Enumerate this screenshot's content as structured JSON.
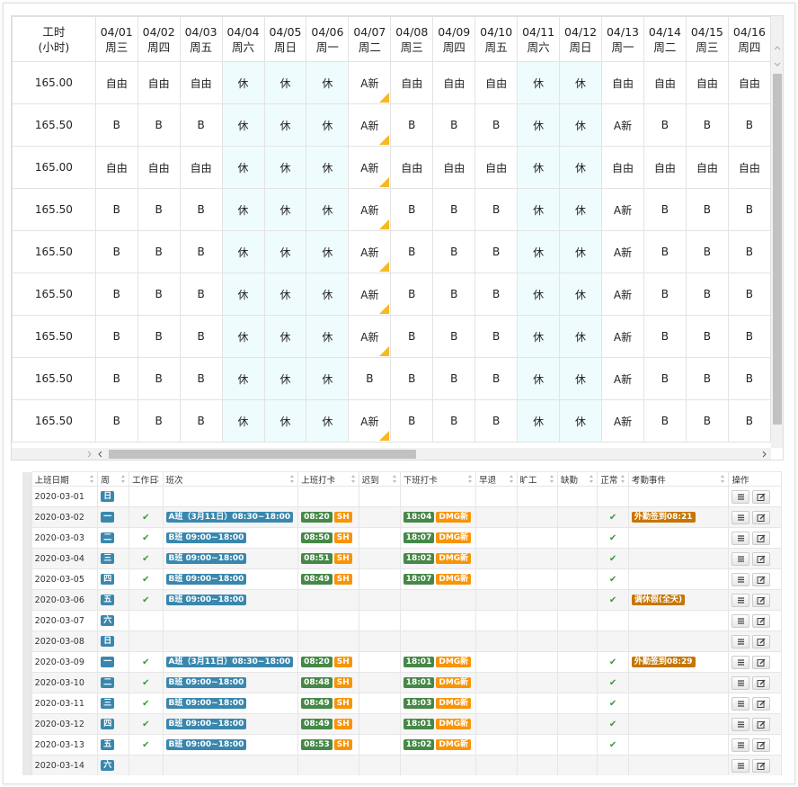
{
  "top": {
    "hours_label": [
      "工时",
      "(小时)"
    ],
    "columns": [
      {
        "date": "04/01",
        "weekday": "周三"
      },
      {
        "date": "04/02",
        "weekday": "周四"
      },
      {
        "date": "04/03",
        "weekday": "周五"
      },
      {
        "date": "04/04",
        "weekday": "周六"
      },
      {
        "date": "04/05",
        "weekday": "周日"
      },
      {
        "date": "04/06",
        "weekday": "周一"
      },
      {
        "date": "04/07",
        "weekday": "周二"
      },
      {
        "date": "04/08",
        "weekday": "周三"
      },
      {
        "date": "04/09",
        "weekday": "周四"
      },
      {
        "date": "04/10",
        "weekday": "周五"
      },
      {
        "date": "04/11",
        "weekday": "周六"
      },
      {
        "date": "04/12",
        "weekday": "周日"
      },
      {
        "date": "04/13",
        "weekday": "周一"
      },
      {
        "date": "04/14",
        "weekday": "周二"
      },
      {
        "date": "04/15",
        "weekday": "周三"
      },
      {
        "date": "04/16",
        "weekday": "周四"
      }
    ],
    "rows": [
      {
        "hours": "165.00",
        "cells": [
          "自由",
          "自由",
          "自由",
          "休",
          "休",
          "休",
          "A新",
          "自由",
          "自由",
          "自由",
          "休",
          "休",
          "自由",
          "自由",
          "自由",
          "自由"
        ]
      },
      {
        "hours": "165.50",
        "cells": [
          "B",
          "B",
          "B",
          "休",
          "休",
          "休",
          "A新",
          "B",
          "B",
          "B",
          "休",
          "休",
          "A新",
          "B",
          "B",
          "B"
        ]
      },
      {
        "hours": "165.00",
        "cells": [
          "自由",
          "自由",
          "自由",
          "休",
          "休",
          "休",
          "A新",
          "自由",
          "自由",
          "自由",
          "休",
          "休",
          "自由",
          "自由",
          "自由",
          "自由"
        ]
      },
      {
        "hours": "165.50",
        "cells": [
          "B",
          "B",
          "B",
          "休",
          "休",
          "休",
          "A新",
          "B",
          "B",
          "B",
          "休",
          "休",
          "A新",
          "B",
          "B",
          "B"
        ]
      },
      {
        "hours": "165.50",
        "cells": [
          "B",
          "B",
          "B",
          "休",
          "休",
          "休",
          "A新",
          "B",
          "B",
          "B",
          "休",
          "休",
          "A新",
          "B",
          "B",
          "B"
        ]
      },
      {
        "hours": "165.50",
        "cells": [
          "B",
          "B",
          "B",
          "休",
          "休",
          "休",
          "A新",
          "B",
          "B",
          "B",
          "休",
          "休",
          "A新",
          "B",
          "B",
          "B"
        ]
      },
      {
        "hours": "165.50",
        "cells": [
          "B",
          "B",
          "B",
          "休",
          "休",
          "休",
          "A新",
          "B",
          "B",
          "B",
          "休",
          "休",
          "A新",
          "B",
          "B",
          "B"
        ]
      },
      {
        "hours": "165.50",
        "cells": [
          "B",
          "B",
          "B",
          "休",
          "休",
          "休",
          "B",
          "B",
          "B",
          "B",
          "休",
          "休",
          "A新",
          "B",
          "B",
          "B"
        ]
      },
      {
        "hours": "165.50",
        "cells": [
          "B",
          "B",
          "B",
          "休",
          "休",
          "休",
          "A新",
          "B",
          "B",
          "B",
          "休",
          "休",
          "A新",
          "B",
          "B",
          "B"
        ]
      }
    ]
  },
  "bottom": {
    "headers": [
      "上班日期",
      "周",
      "工作日",
      "班次",
      "上班打卡",
      "迟到",
      "下班打卡",
      "早退",
      "旷工",
      "缺勤",
      "正常",
      "考勤事件",
      "操作"
    ],
    "rows": [
      {
        "date": "2020-03-01",
        "weekday": "日"
      },
      {
        "date": "2020-03-02",
        "weekday": "一",
        "workday": "✔",
        "shift": "A班（3月11日）08:30~18:00",
        "clock_in": "08:20",
        "clock_in_tag": "SH",
        "clock_out": "18:04",
        "clock_out_tag": "DMG新",
        "normal": "✔",
        "event": "外勤签到08:21"
      },
      {
        "date": "2020-03-03",
        "weekday": "二",
        "workday": "✔",
        "shift": "B班 09:00~18:00",
        "clock_in": "08:50",
        "clock_in_tag": "SH",
        "clock_out": "18:07",
        "clock_out_tag": "DMG新",
        "normal": "✔"
      },
      {
        "date": "2020-03-04",
        "weekday": "三",
        "workday": "✔",
        "shift": "B班 09:00~18:00",
        "clock_in": "08:51",
        "clock_in_tag": "SH",
        "clock_out": "18:02",
        "clock_out_tag": "DMG新",
        "normal": "✔"
      },
      {
        "date": "2020-03-05",
        "weekday": "四",
        "workday": "✔",
        "shift": "B班 09:00~18:00",
        "clock_in": "08:49",
        "clock_in_tag": "SH",
        "clock_out": "18:07",
        "clock_out_tag": "DMG新",
        "normal": "✔"
      },
      {
        "date": "2020-03-06",
        "weekday": "五",
        "workday": "✔",
        "shift": "B班 09:00~18:00",
        "normal": "✔",
        "event": "调休假(全天)"
      },
      {
        "date": "2020-03-07",
        "weekday": "六"
      },
      {
        "date": "2020-03-08",
        "weekday": "日"
      },
      {
        "date": "2020-03-09",
        "weekday": "一",
        "workday": "✔",
        "shift": "A班（3月11日）08:30~18:00",
        "clock_in": "08:20",
        "clock_in_tag": "SH",
        "clock_out": "18:01",
        "clock_out_tag": "DMG新",
        "normal": "✔",
        "event": "外勤签到08:29"
      },
      {
        "date": "2020-03-10",
        "weekday": "二",
        "workday": "✔",
        "shift": "B班 09:00~18:00",
        "clock_in": "08:48",
        "clock_in_tag": "SH",
        "clock_out": "18:01",
        "clock_out_tag": "DMG新",
        "normal": "✔"
      },
      {
        "date": "2020-03-11",
        "weekday": "三",
        "workday": "✔",
        "shift": "B班 09:00~18:00",
        "clock_in": "08:49",
        "clock_in_tag": "SH",
        "clock_out": "18:03",
        "clock_out_tag": "DMG新",
        "normal": "✔"
      },
      {
        "date": "2020-03-12",
        "weekday": "四",
        "workday": "✔",
        "shift": "B班 09:00~18:00",
        "clock_in": "08:49",
        "clock_in_tag": "SH",
        "clock_out": "18:01",
        "clock_out_tag": "DMG新",
        "normal": "✔"
      },
      {
        "date": "2020-03-13",
        "weekday": "五",
        "workday": "✔",
        "shift": "B班 09:00~18:00",
        "clock_in": "08:53",
        "clock_in_tag": "SH",
        "clock_out": "18:02",
        "clock_out_tag": "DMG新",
        "normal": "✔"
      },
      {
        "date": "2020-03-14",
        "weekday": "六"
      }
    ]
  }
}
